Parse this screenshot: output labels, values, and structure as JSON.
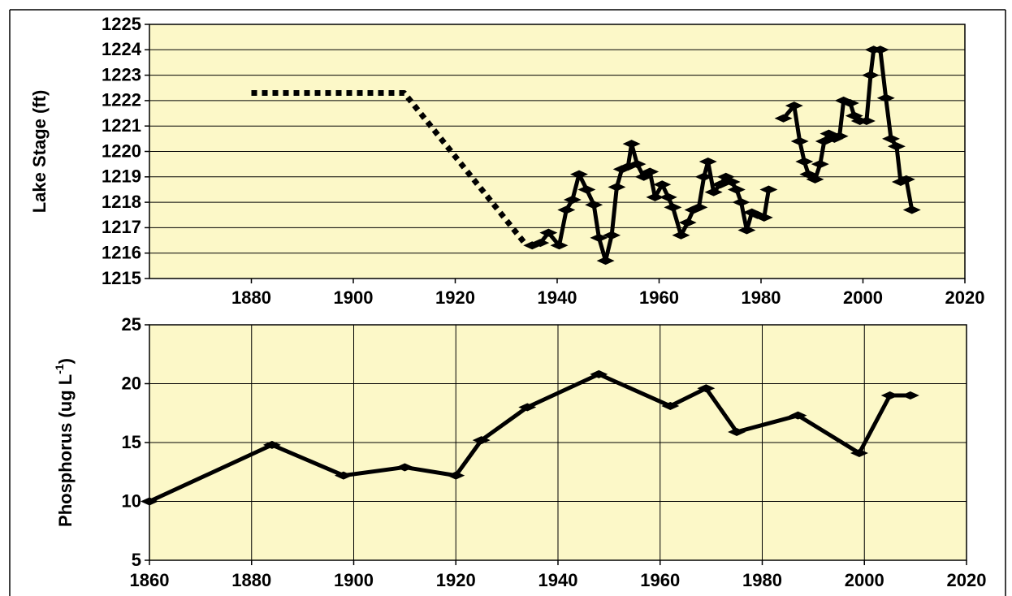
{
  "chart_data": [
    {
      "type": "line",
      "ylabel": "Lake Stage (ft)",
      "xlim": [
        1860,
        2020
      ],
      "xticks": [
        1880,
        1900,
        1920,
        1940,
        1960,
        1980,
        2000,
        2020
      ],
      "ylim": [
        1215,
        1225
      ],
      "yticks": [
        1215,
        1216,
        1217,
        1218,
        1219,
        1220,
        1221,
        1222,
        1223,
        1224,
        1225
      ],
      "grid": "y",
      "background": "#fcf8c8",
      "series": [
        {
          "color": "#000000",
          "dotted": true,
          "markers": false,
          "x": [
            1880,
            1910,
            1934
          ],
          "values": [
            1222.3,
            1222.3,
            1216.3
          ]
        },
        {
          "color": "#000000",
          "dotted": false,
          "markers": true,
          "x": [
            1935.1,
            1936.7,
            1938.3,
            1940.4,
            1941.8,
            1943,
            1944.3,
            1945.8,
            1947.2,
            1948.2,
            1949.5,
            1950.7,
            1951.7,
            1952.7,
            1953.9,
            1954.6,
            1955.7,
            1957,
            1958.2,
            1959.2,
            1960.6,
            1961.8,
            1962.7,
            1964.3,
            1965.6,
            1966.7,
            1967.8,
            1968.8,
            1969.6,
            1970.7,
            1972,
            1973.1,
            1974.2,
            1975.2,
            1976.1,
            1977.2,
            1978.2,
            1979.3,
            1980.6,
            1981.5
          ],
          "values": [
            1216.3,
            1216.4,
            1216.8,
            1216.3,
            1217.7,
            1218.1,
            1219.1,
            1218.5,
            1217.9,
            1216.6,
            1215.7,
            1216.7,
            1218.6,
            1219.3,
            1219.4,
            1220.3,
            1219.5,
            1219.0,
            1219.2,
            1218.2,
            1218.7,
            1218.2,
            1217.8,
            1216.7,
            1217.2,
            1217.7,
            1217.8,
            1219.0,
            1219.6,
            1218.4,
            1218.7,
            1219.0,
            1218.8,
            1218.5,
            1218.0,
            1216.9,
            1217.6,
            1217.5,
            1217.4,
            1218.5
          ]
        },
        {
          "color": "#000000",
          "dotted": false,
          "markers": true,
          "x": [
            1984.4,
            1986.5,
            1987.6,
            1988.5,
            1989.3,
            1990.6,
            1991.6,
            1992.4,
            1993.3,
            1994.4,
            1995.4,
            1996.2,
            1997.5,
            1998.3,
            1999.4,
            2000.7,
            2001.5,
            2002.1,
            2003.4,
            2004.5,
            2005.5,
            2006.6,
            2007.4,
            2008.5,
            2009.6
          ],
          "values": [
            1221.3,
            1221.8,
            1220.4,
            1219.6,
            1219.1,
            1218.9,
            1219.5,
            1220.4,
            1220.7,
            1220.5,
            1220.6,
            1222.0,
            1221.9,
            1221.4,
            1221.2,
            1221.2,
            1223.0,
            1224.0,
            1224.0,
            1222.1,
            1220.5,
            1220.2,
            1218.8,
            1218.9,
            1217.7
          ]
        }
      ]
    },
    {
      "type": "line",
      "ylabel": "Phosphorus (ug L",
      "ylabel_sup": "-1",
      "ylabel_end": ")",
      "xlim": [
        1860,
        2020
      ],
      "xticks": [
        1860,
        1880,
        1900,
        1920,
        1940,
        1960,
        1980,
        2000,
        2020
      ],
      "ylim": [
        5,
        25
      ],
      "yticks": [
        5,
        10,
        15,
        20,
        25
      ],
      "grid": "both",
      "background": "#fcf8c8",
      "series": [
        {
          "color": "#000000",
          "dotted": false,
          "markers": true,
          "x": [
            1860,
            1884,
            1898,
            1910,
            1920,
            1925,
            1934,
            1948,
            1962,
            1969,
            1975,
            1987,
            1999,
            2005,
            2009
          ],
          "values": [
            10,
            14.8,
            12.2,
            12.9,
            12.2,
            15.2,
            18.0,
            20.8,
            18.1,
            19.6,
            15.9,
            17.3,
            14.1,
            19.0,
            19.0
          ]
        }
      ]
    }
  ]
}
